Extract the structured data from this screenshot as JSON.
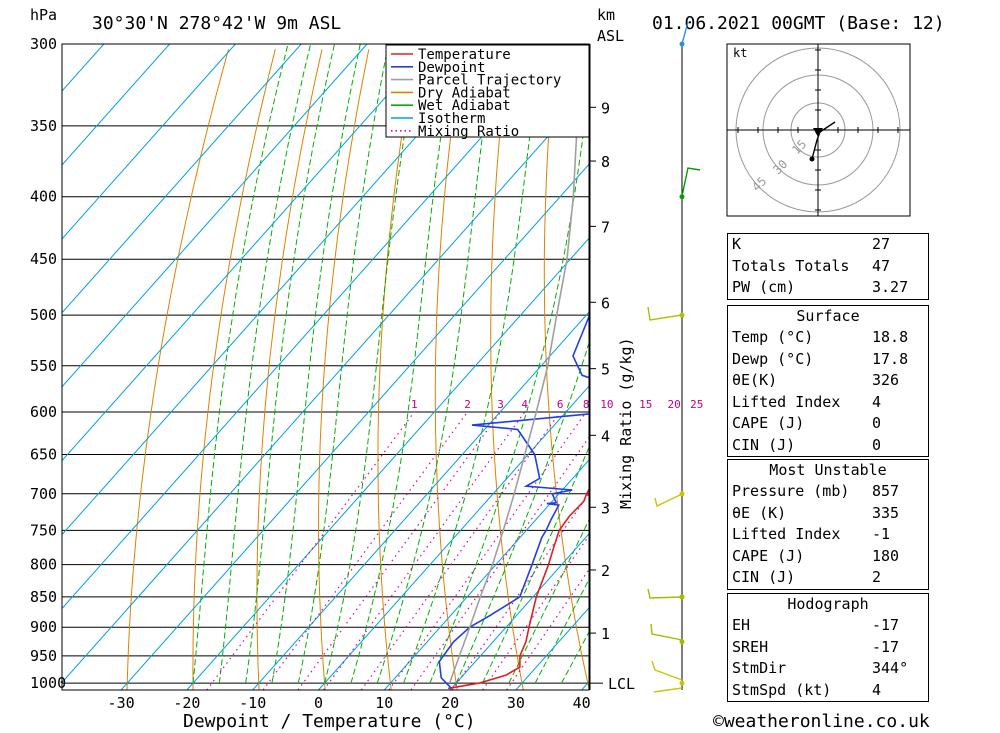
{
  "header": {
    "hpa_label": "hPa",
    "location": "30°30'N  278°42'W  9m  ASL",
    "km_label": "km",
    "asl_label": "ASL",
    "datetime": "01.06.2021  00GMT  (Base: 12)"
  },
  "legend": {
    "items": [
      {
        "label": "Temperature",
        "color": "#e02020",
        "style": "solid"
      },
      {
        "label": "Dewpoint",
        "color": "#2040e0",
        "style": "solid"
      },
      {
        "label": "Parcel Trajectory",
        "color": "#a0a0a0",
        "style": "solid"
      },
      {
        "label": "Dry Adiabat",
        "color": "#e08000",
        "style": "solid"
      },
      {
        "label": "Wet Adiabat",
        "color": "#00b000",
        "style": "solid"
      },
      {
        "label": "Isotherm",
        "color": "#00a0e0",
        "style": "solid"
      },
      {
        "label": "Mixing Ratio",
        "color": "#e000a0",
        "style": "dotted"
      }
    ]
  },
  "chart_data": {
    "type": "line",
    "subtype": "skew-t log-p",
    "xlabel": "Dewpoint / Temperature (°C)",
    "ylabel": "hPa",
    "secondary_ylabel": "Mixing Ratio (g/kg)",
    "pressure_ticks": [
      300,
      350,
      400,
      450,
      500,
      550,
      600,
      650,
      700,
      750,
      800,
      850,
      900,
      950,
      1000
    ],
    "temperature_ticks": [
      -30,
      -20,
      -10,
      0,
      10,
      20,
      30,
      40
    ],
    "ylim": [
      1013,
      300
    ],
    "xlim": [
      -40,
      40
    ],
    "km_ticks": [
      {
        "km": "9",
        "p": 338
      },
      {
        "km": "8",
        "p": 374
      },
      {
        "km": "7",
        "p": 423
      },
      {
        "km": "6",
        "p": 488
      },
      {
        "km": "5",
        "p": 553
      },
      {
        "km": "4",
        "p": 627
      },
      {
        "km": "3",
        "p": 718
      },
      {
        "km": "2",
        "p": 808
      },
      {
        "km": "1",
        "p": 910
      }
    ],
    "lcl_label": "LCL",
    "lcl_pressure": 1000,
    "mixing_ratio_labels": [
      "1",
      "2",
      "3",
      "4",
      "6",
      "8",
      "10",
      "15",
      "20",
      "25"
    ],
    "series": [
      {
        "name": "Temperature",
        "color": "#e02020",
        "points": [
          [
            1010,
            19.5
          ],
          [
            1000,
            23.5
          ],
          [
            985,
            26.5
          ],
          [
            970,
            27.5
          ],
          [
            950,
            26.0
          ],
          [
            925,
            25.0
          ],
          [
            900,
            23.5
          ],
          [
            850,
            20.5
          ],
          [
            800,
            18.0
          ],
          [
            775,
            16.5
          ],
          [
            750,
            15.0
          ],
          [
            730,
            14.6
          ],
          [
            710,
            14.8
          ],
          [
            700,
            14.2
          ],
          [
            650,
            12.3
          ],
          [
            625,
            11.5
          ],
          [
            600,
            8.7
          ],
          [
            575,
            6.8
          ],
          [
            560,
            5.6
          ],
          [
            550,
            5.6
          ],
          [
            525,
            4.2
          ],
          [
            500,
            2.0
          ],
          [
            490,
            0.5
          ],
          [
            475,
            0.0
          ],
          [
            450,
            -1.8
          ],
          [
            430,
            -3.3
          ],
          [
            410,
            -5.5
          ],
          [
            400,
            -6.0
          ],
          [
            395,
            -6.8
          ],
          [
            385,
            -6.5
          ],
          [
            370,
            -8.5
          ],
          [
            350,
            -12.0
          ],
          [
            325,
            -16.0
          ],
          [
            310,
            -18.0
          ],
          [
            300,
            -18.5
          ]
        ]
      },
      {
        "name": "Dewpoint",
        "color": "#2040e0",
        "points": [
          [
            1010,
            20.0
          ],
          [
            1000,
            18.5
          ],
          [
            990,
            17.0
          ],
          [
            960,
            14.5
          ],
          [
            925,
            14.0
          ],
          [
            900,
            14.5
          ],
          [
            880,
            16.0
          ],
          [
            850,
            18.0
          ],
          [
            800,
            15.5
          ],
          [
            760,
            13.3
          ],
          [
            750,
            13.0
          ],
          [
            735,
            12.3
          ],
          [
            715,
            11.5
          ],
          [
            713,
            9.5
          ],
          [
            712,
            10.8
          ],
          [
            700,
            9.0
          ],
          [
            695,
            11.5
          ],
          [
            690,
            4.0
          ],
          [
            680,
            5.0
          ],
          [
            650,
            1.0
          ],
          [
            620,
            -5.0
          ],
          [
            615,
            -12.5
          ],
          [
            600,
            6.5
          ],
          [
            580,
            7.0
          ],
          [
            570,
            3.0
          ],
          [
            560,
            -2.5
          ],
          [
            540,
            -6.5
          ],
          [
            500,
            -9.5
          ],
          [
            485,
            -10.0
          ],
          [
            470,
            -13.0
          ],
          [
            430,
            -9.5
          ],
          [
            420,
            -8.0
          ],
          [
            405,
            -10.0
          ],
          [
            398,
            -26.0
          ],
          [
            375,
            -16.0
          ],
          [
            360,
            -20.0
          ],
          [
            345,
            -24.0
          ],
          [
            330,
            -28.0
          ],
          [
            310,
            -32.0
          ],
          [
            300,
            -34.0
          ]
        ]
      },
      {
        "name": "Parcel Trajectory",
        "color": "#a0a0a0",
        "points": [
          [
            1000,
            19.0
          ],
          [
            950,
            16.8
          ],
          [
            900,
            14.5
          ],
          [
            850,
            12.0
          ],
          [
            800,
            9.5
          ],
          [
            750,
            6.5
          ],
          [
            700,
            3.2
          ],
          [
            650,
            -0.5
          ],
          [
            600,
            -4.5
          ],
          [
            550,
            -9.0
          ],
          [
            500,
            -14.5
          ],
          [
            450,
            -20.5
          ],
          [
            400,
            -28.0
          ],
          [
            350,
            -37.0
          ],
          [
            300,
            -48.0
          ]
        ]
      }
    ]
  },
  "hodograph": {
    "unit_label": "kt",
    "ring_labels": [
      "15",
      "30",
      "45"
    ]
  },
  "indices": {
    "rows": [
      {
        "label": "K",
        "value": "27"
      },
      {
        "label": "Totals Totals",
        "value": "47"
      },
      {
        "label": "PW (cm)",
        "value": "3.27"
      }
    ]
  },
  "surface": {
    "title": "Surface",
    "rows": [
      {
        "label": "Temp (°C)",
        "value": "18.8"
      },
      {
        "label": "Dewp (°C)",
        "value": "17.8"
      },
      {
        "label": "θE(K)",
        "value": "326"
      },
      {
        "label": "Lifted Index",
        "value": "4"
      },
      {
        "label": "CAPE (J)",
        "value": "0"
      },
      {
        "label": "CIN (J)",
        "value": "0"
      }
    ]
  },
  "most_unstable": {
    "title": "Most Unstable",
    "rows": [
      {
        "label": "Pressure (mb)",
        "value": "857"
      },
      {
        "label": "θE (K)",
        "value": "335"
      },
      {
        "label": "Lifted Index",
        "value": "-1"
      },
      {
        "label": "CAPE (J)",
        "value": "180"
      },
      {
        "label": "CIN (J)",
        "value": "2"
      }
    ]
  },
  "hodograph_table": {
    "title": "Hodograph",
    "rows": [
      {
        "label": "EH",
        "value": "-17"
      },
      {
        "label": "SREH",
        "value": "-17"
      },
      {
        "label": "StmDir",
        "value": "344°"
      },
      {
        "label": "StmSpd (kt)",
        "value": "4"
      }
    ]
  },
  "footer": {
    "copyright": "©weatheronline.co.uk"
  }
}
